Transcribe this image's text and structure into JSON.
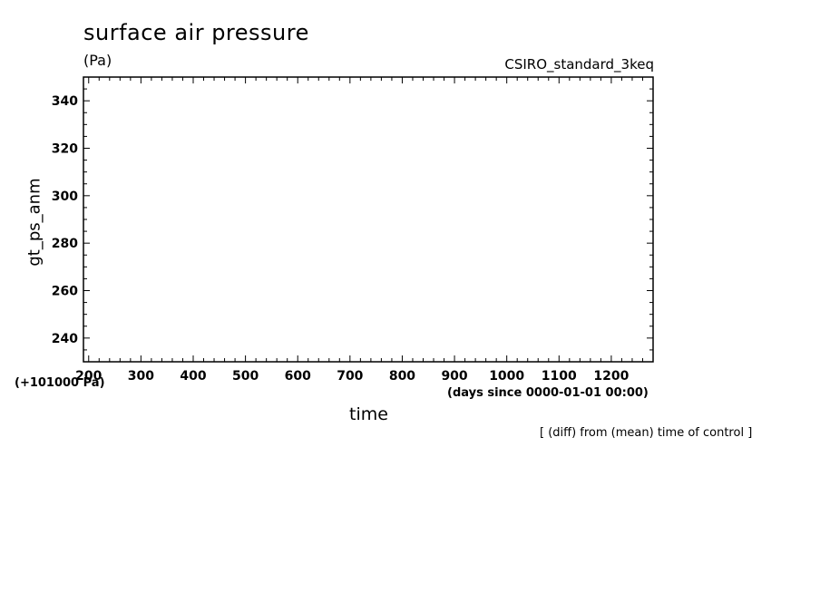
{
  "chart_data": {
    "type": "line",
    "title": "surface air pressure",
    "unit_label": "(Pa)",
    "experiment": "CSIRO_standard_3keq",
    "ylabel": "gt_ps_anm",
    "xlabel": "time",
    "x_units": "(days since 0000-01-01 00:00)",
    "y_offset_label": "(+101000 Pa)",
    "note": "[ (diff) from (mean) time of control ]",
    "xlim": [
      190,
      1280
    ],
    "ylim": [
      230,
      350
    ],
    "x_ticks": [
      200,
      300,
      400,
      500,
      600,
      700,
      800,
      900,
      1000,
      1100,
      1200
    ],
    "y_ticks": [
      240,
      260,
      280,
      300,
      320,
      340
    ],
    "grid": false,
    "series": []
  }
}
